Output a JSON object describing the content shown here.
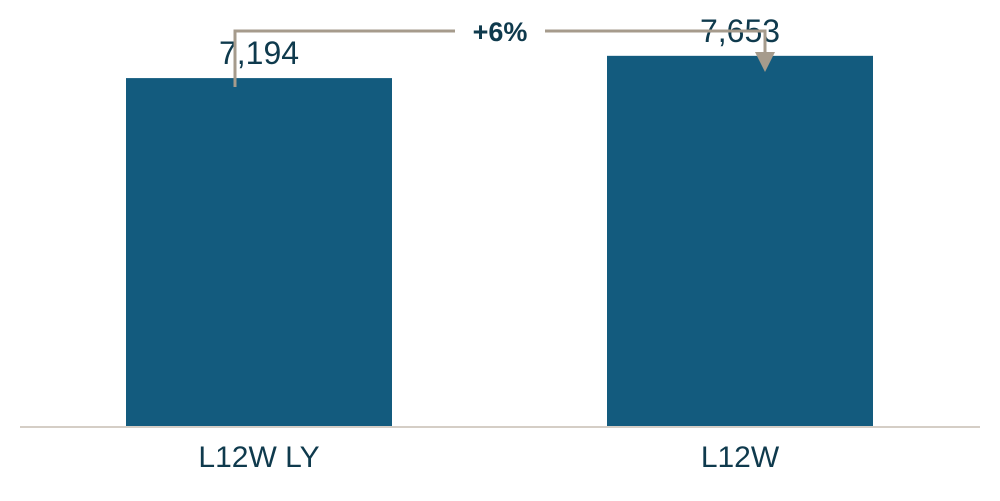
{
  "chart_data": {
    "type": "bar",
    "categories": [
      "L12W LY",
      "L12W"
    ],
    "values": [
      7194,
      7653
    ],
    "value_labels": [
      "7,194",
      "7,653"
    ],
    "ylim": [
      0,
      8000
    ],
    "title": "",
    "xlabel": "",
    "ylabel": "",
    "grid": false,
    "annotation": {
      "text": "+6%",
      "from_category": "L12W LY",
      "to_category": "L12W"
    },
    "colors": {
      "bar": "#135b7e",
      "text": "#0f3a4d",
      "axis": "#d5cec6",
      "annotation": "#a69b8c"
    }
  }
}
